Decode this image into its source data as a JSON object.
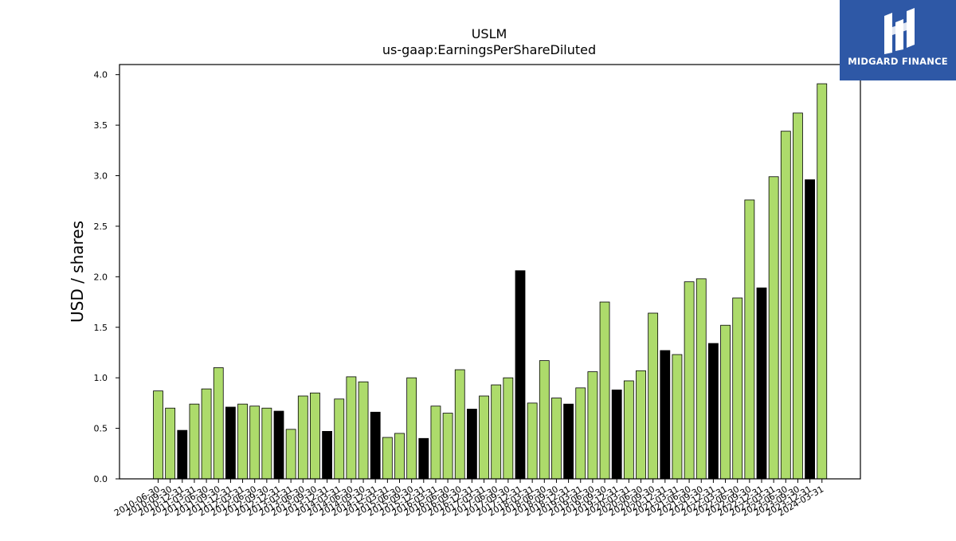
{
  "chart_data": {
    "type": "bar",
    "title": "USLM",
    "subtitle": "us-gaap:EarningsPerShareDiluted",
    "ylabel": "USD / shares",
    "xlabel": "",
    "ylim": [
      0,
      4.1
    ],
    "yticks": [
      "0.0",
      "0.5",
      "1.0",
      "1.5",
      "2.0",
      "2.5",
      "3.0",
      "3.5",
      "4.0"
    ],
    "grid": false,
    "colors": {
      "quarter": "#addb6b",
      "annual": "#000000",
      "edge": "#000000"
    },
    "categories": [
      "2010-06-30",
      "2010-09-30",
      "2010-12-31",
      "2011-03-31",
      "2011-06-30",
      "2011-09-30",
      "2011-12-31",
      "2012-03-31",
      "2012-06-30",
      "2012-09-30",
      "2012-12-31",
      "2013-03-31",
      "2013-06-30",
      "2013-09-30",
      "2013-12-31",
      "2014-03-31",
      "2014-06-30",
      "2014-09-30",
      "2014-12-31",
      "2015-03-31",
      "2015-06-30",
      "2015-09-30",
      "2015-12-31",
      "2016-03-31",
      "2016-06-30",
      "2016-09-30",
      "2016-12-31",
      "2017-03-31",
      "2017-06-30",
      "2017-09-30",
      "2017-12-31",
      "2018-03-31",
      "2018-06-30",
      "2018-09-30",
      "2018-12-31",
      "2019-03-31",
      "2019-06-30",
      "2019-09-30",
      "2019-12-31",
      "2020-03-31",
      "2020-06-30",
      "2020-09-30",
      "2020-12-31",
      "2021-03-31",
      "2021-06-30",
      "2021-09-30",
      "2021-12-31",
      "2022-03-31",
      "2022-06-30",
      "2022-09-30",
      "2022-12-31",
      "2023-03-31",
      "2023-06-30",
      "2023-09-30",
      "2023-12-31",
      "2024-03-31"
    ],
    "values": [
      0.87,
      0.7,
      0.48,
      0.74,
      0.89,
      1.1,
      0.71,
      0.74,
      0.72,
      0.7,
      0.67,
      0.49,
      0.82,
      0.85,
      0.47,
      0.79,
      1.01,
      0.96,
      0.66,
      0.41,
      0.45,
      1.0,
      0.4,
      0.72,
      0.65,
      1.08,
      0.69,
      0.82,
      0.93,
      1.0,
      2.06,
      0.75,
      1.17,
      0.8,
      0.74,
      0.9,
      1.06,
      1.75,
      0.88,
      0.97,
      1.07,
      1.64,
      1.27,
      1.23,
      1.95,
      1.98,
      1.34,
      1.52,
      1.79,
      2.76,
      1.89,
      2.99,
      3.44,
      3.62,
      2.96,
      3.91
    ],
    "annual_flags": [
      false,
      false,
      true,
      false,
      false,
      false,
      true,
      false,
      false,
      false,
      true,
      false,
      false,
      false,
      true,
      false,
      false,
      false,
      true,
      false,
      false,
      false,
      true,
      false,
      false,
      false,
      true,
      false,
      false,
      false,
      true,
      false,
      false,
      false,
      true,
      false,
      false,
      false,
      true,
      false,
      false,
      false,
      true,
      false,
      false,
      false,
      true,
      false,
      false,
      false,
      true,
      false,
      false,
      false,
      true,
      false
    ]
  },
  "logo": {
    "text": "MIDGARD FINANCE"
  }
}
